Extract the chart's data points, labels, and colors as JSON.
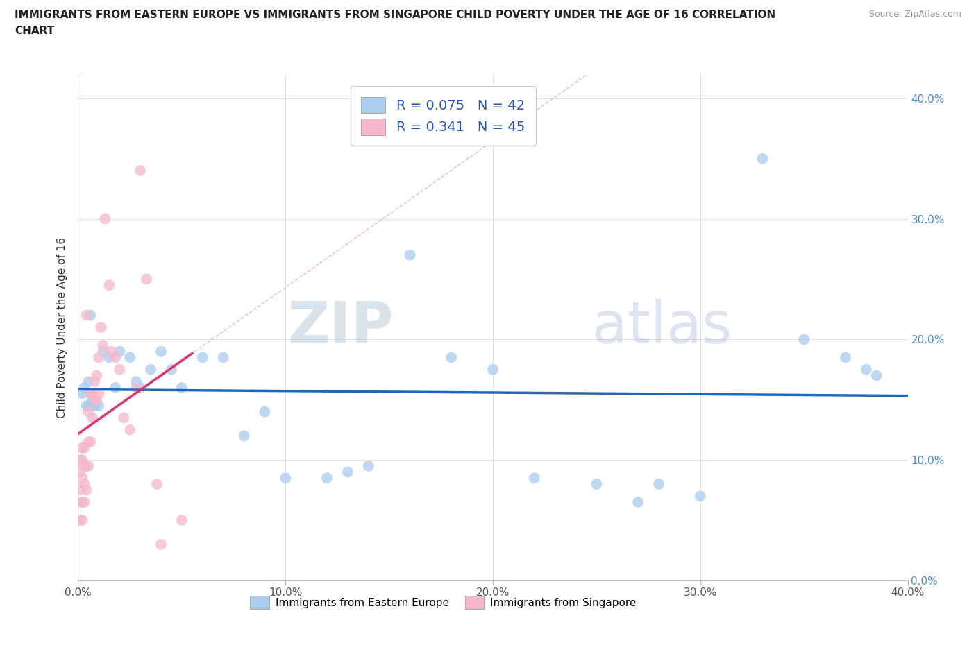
{
  "title_line1": "IMMIGRANTS FROM EASTERN EUROPE VS IMMIGRANTS FROM SINGAPORE CHILD POVERTY UNDER THE AGE OF 16 CORRELATION",
  "title_line2": "CHART",
  "source": "Source: ZipAtlas.com",
  "ylabel": "Child Poverty Under the Age of 16",
  "r_eastern": 0.075,
  "n_eastern": 42,
  "r_singapore": 0.341,
  "n_singapore": 45,
  "eastern_color": "#aaccee",
  "eastern_line_color": "#2266bb",
  "singapore_color": "#f5b8cc",
  "singapore_line_color": "#dd3366",
  "watermark_zip": "ZIP",
  "watermark_atlas": "atlas",
  "xlim": [
    0.0,
    0.4
  ],
  "ylim": [
    0.0,
    0.42
  ],
  "yticks": [
    0.0,
    0.1,
    0.2,
    0.3,
    0.4
  ],
  "xticks": [
    0.0,
    0.1,
    0.2,
    0.3,
    0.4
  ],
  "eastern_x": [
    0.002,
    0.003,
    0.004,
    0.005,
    0.005,
    0.006,
    0.006,
    0.007,
    0.008,
    0.01,
    0.012,
    0.015,
    0.018,
    0.02,
    0.025,
    0.028,
    0.03,
    0.035,
    0.04,
    0.045,
    0.05,
    0.06,
    0.07,
    0.08,
    0.09,
    0.1,
    0.12,
    0.13,
    0.14,
    0.16,
    0.18,
    0.2,
    0.22,
    0.25,
    0.27,
    0.28,
    0.3,
    0.33,
    0.35,
    0.37,
    0.38,
    0.385
  ],
  "eastern_y": [
    0.155,
    0.16,
    0.145,
    0.165,
    0.145,
    0.22,
    0.155,
    0.15,
    0.145,
    0.145,
    0.19,
    0.185,
    0.16,
    0.19,
    0.185,
    0.165,
    0.16,
    0.175,
    0.19,
    0.175,
    0.16,
    0.185,
    0.185,
    0.12,
    0.14,
    0.085,
    0.085,
    0.09,
    0.095,
    0.27,
    0.185,
    0.175,
    0.085,
    0.08,
    0.065,
    0.08,
    0.07,
    0.35,
    0.2,
    0.185,
    0.175,
    0.17
  ],
  "singapore_x": [
    0.001,
    0.001,
    0.001,
    0.001,
    0.001,
    0.002,
    0.002,
    0.002,
    0.002,
    0.002,
    0.003,
    0.003,
    0.003,
    0.003,
    0.004,
    0.004,
    0.004,
    0.005,
    0.005,
    0.005,
    0.006,
    0.006,
    0.007,
    0.007,
    0.008,
    0.008,
    0.009,
    0.009,
    0.01,
    0.01,
    0.011,
    0.012,
    0.013,
    0.015,
    0.016,
    0.018,
    0.02,
    0.022,
    0.025,
    0.028,
    0.03,
    0.033,
    0.038,
    0.04,
    0.05
  ],
  "singapore_y": [
    0.05,
    0.065,
    0.075,
    0.09,
    0.1,
    0.05,
    0.065,
    0.085,
    0.1,
    0.11,
    0.065,
    0.08,
    0.095,
    0.11,
    0.075,
    0.095,
    0.22,
    0.095,
    0.115,
    0.14,
    0.115,
    0.155,
    0.135,
    0.155,
    0.15,
    0.165,
    0.15,
    0.17,
    0.155,
    0.185,
    0.21,
    0.195,
    0.3,
    0.245,
    0.19,
    0.185,
    0.175,
    0.135,
    0.125,
    0.16,
    0.34,
    0.25,
    0.08,
    0.03,
    0.05
  ]
}
